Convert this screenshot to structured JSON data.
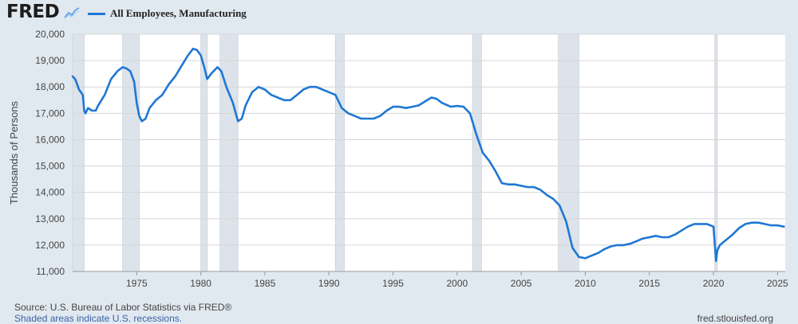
{
  "header": {
    "logo_text": "FRED",
    "legend_label": "All Employees, Manufacturing",
    "line_color": "#1f77d4"
  },
  "footer": {
    "source": "Source: U.S. Bureau of Labor Statistics via FRED®",
    "recession_note": "Shaded areas indicate U.S. recessions.",
    "site": "fred.stlouisfed.org"
  },
  "chart_data": {
    "type": "line",
    "title": "",
    "xlabel": "",
    "ylabel": "Thousands of Persons",
    "xlim": [
      1970.0,
      2025.6
    ],
    "ylim": [
      11000,
      20000
    ],
    "grid": true,
    "legend_position": "top-left",
    "x_ticks": [
      1975,
      1980,
      1985,
      1990,
      1995,
      2000,
      2005,
      2010,
      2015,
      2020,
      2025
    ],
    "y_ticks": [
      11000,
      12000,
      13000,
      14000,
      15000,
      16000,
      17000,
      18000,
      19000,
      20000
    ],
    "recessions": [
      [
        1969.9,
        1970.9
      ],
      [
        1973.9,
        1975.2
      ],
      [
        1980.0,
        1980.5
      ],
      [
        1981.5,
        1982.9
      ],
      [
        1990.5,
        1991.2
      ],
      [
        2001.2,
        2001.9
      ],
      [
        2007.9,
        2009.5
      ],
      [
        2020.1,
        2020.3
      ]
    ],
    "series": [
      {
        "name": "All Employees, Manufacturing",
        "x": [
          1970.0,
          1970.2,
          1970.5,
          1970.8,
          1970.9,
          1971.0,
          1971.2,
          1971.5,
          1971.8,
          1972.0,
          1972.5,
          1973.0,
          1973.5,
          1973.9,
          1974.2,
          1974.5,
          1974.8,
          1975.0,
          1975.2,
          1975.4,
          1975.7,
          1976.0,
          1976.5,
          1977.0,
          1977.5,
          1978.0,
          1978.5,
          1979.0,
          1979.4,
          1979.7,
          1980.0,
          1980.3,
          1980.5,
          1980.8,
          1981.0,
          1981.3,
          1981.6,
          1982.0,
          1982.5,
          1982.9,
          1983.2,
          1983.5,
          1984.0,
          1984.5,
          1985.0,
          1985.5,
          1986.0,
          1986.5,
          1987.0,
          1987.5,
          1988.0,
          1988.5,
          1989.0,
          1989.5,
          1990.0,
          1990.5,
          1991.0,
          1991.5,
          1992.0,
          1992.5,
          1993.0,
          1993.5,
          1994.0,
          1994.5,
          1995.0,
          1995.5,
          1996.0,
          1996.5,
          1997.0,
          1997.5,
          1998.0,
          1998.4,
          1998.8,
          1999.5,
          2000.0,
          2000.5,
          2001.0,
          2001.5,
          2002.0,
          2002.5,
          2003.0,
          2003.5,
          2004.0,
          2004.5,
          2005.0,
          2005.5,
          2006.0,
          2006.5,
          2007.0,
          2007.5,
          2008.0,
          2008.5,
          2009.0,
          2009.5,
          2010.0,
          2010.5,
          2011.0,
          2011.5,
          2012.0,
          2012.5,
          2013.0,
          2013.5,
          2014.0,
          2014.5,
          2015.0,
          2015.5,
          2016.0,
          2016.5,
          2017.0,
          2017.5,
          2018.0,
          2018.5,
          2019.0,
          2019.5,
          2020.0,
          2020.2,
          2020.3,
          2020.5,
          2021.0,
          2021.5,
          2022.0,
          2022.5,
          2023.0,
          2023.5,
          2024.0,
          2024.5,
          2025.0,
          2025.5
        ],
        "values": [
          18400,
          18300,
          17900,
          17700,
          17100,
          17000,
          17200,
          17100,
          17100,
          17300,
          17700,
          18300,
          18600,
          18750,
          18700,
          18600,
          18200,
          17400,
          16900,
          16700,
          16800,
          17200,
          17500,
          17700,
          18100,
          18400,
          18800,
          19200,
          19450,
          19400,
          19200,
          18700,
          18300,
          18500,
          18600,
          18750,
          18600,
          18000,
          17400,
          16700,
          16800,
          17300,
          17800,
          18000,
          17900,
          17700,
          17600,
          17500,
          17500,
          17700,
          17900,
          18000,
          18000,
          17900,
          17800,
          17700,
          17200,
          17000,
          16900,
          16800,
          16800,
          16800,
          16900,
          17100,
          17250,
          17250,
          17200,
          17250,
          17300,
          17450,
          17600,
          17550,
          17400,
          17250,
          17280,
          17250,
          17000,
          16200,
          15500,
          15200,
          14800,
          14350,
          14300,
          14300,
          14250,
          14200,
          14200,
          14100,
          13900,
          13750,
          13500,
          12900,
          11900,
          11550,
          11500,
          11600,
          11700,
          11850,
          11950,
          12000,
          12000,
          12050,
          12150,
          12250,
          12300,
          12350,
          12300,
          12300,
          12400,
          12550,
          12700,
          12800,
          12800,
          12800,
          12700,
          11400,
          11800,
          12000,
          12200,
          12400,
          12650,
          12800,
          12850,
          12850,
          12800,
          12750,
          12750,
          12700
        ]
      }
    ]
  }
}
